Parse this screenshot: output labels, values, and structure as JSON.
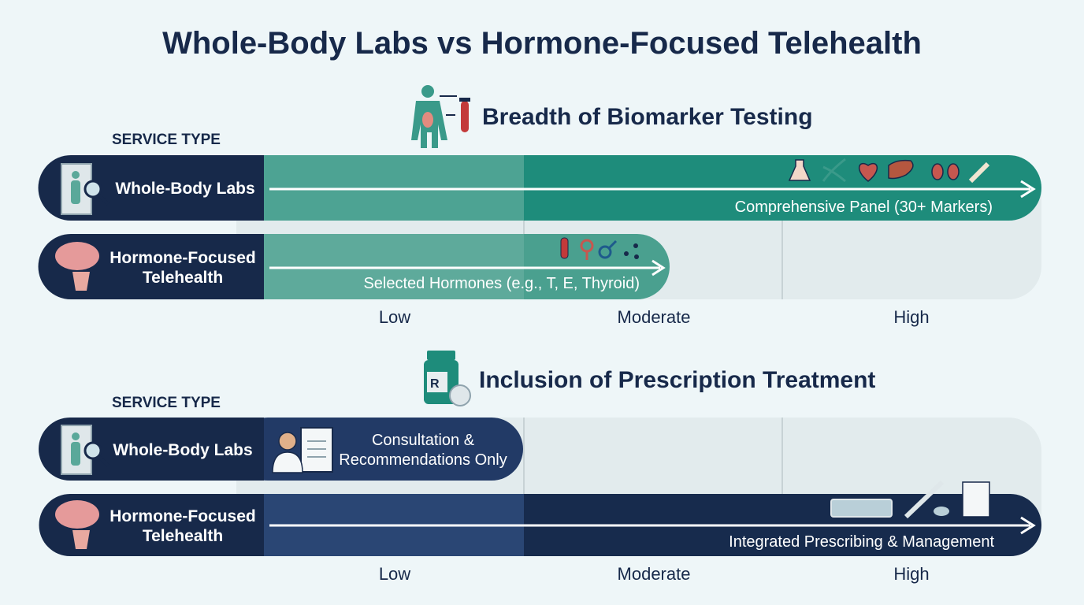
{
  "title": "Whole-Body Labs vs Hormone-Focused Telehealth",
  "sections": [
    {
      "heading": "Breadth of Biomarker Testing",
      "axis_label": "SERVICE TYPE",
      "rows": [
        {
          "label": [
            "Whole-Body Labs"
          ],
          "bar_text": [
            "Comprehensive Panel (30+ Markers)"
          ]
        },
        {
          "label": [
            "Hormone-Focused",
            "Telehealth"
          ],
          "bar_text": [
            "Selected Hormones (e.g., T, E, Thyroid)"
          ]
        }
      ],
      "scale": [
        "Low",
        "Moderate",
        "High"
      ]
    },
    {
      "heading": "Inclusion of Prescription Treatment",
      "axis_label": "SERVICE TYPE",
      "rows": [
        {
          "label": [
            "Whole-Body Labs"
          ],
          "bar_text": [
            "Consultation &",
            "Recommendations Only"
          ]
        },
        {
          "label": [
            "Hormone-Focused",
            "Telehealth"
          ],
          "bar_text": [
            "Integrated Prescribing & Management"
          ]
        }
      ],
      "scale": [
        "Low",
        "Moderate",
        "High"
      ]
    }
  ]
}
